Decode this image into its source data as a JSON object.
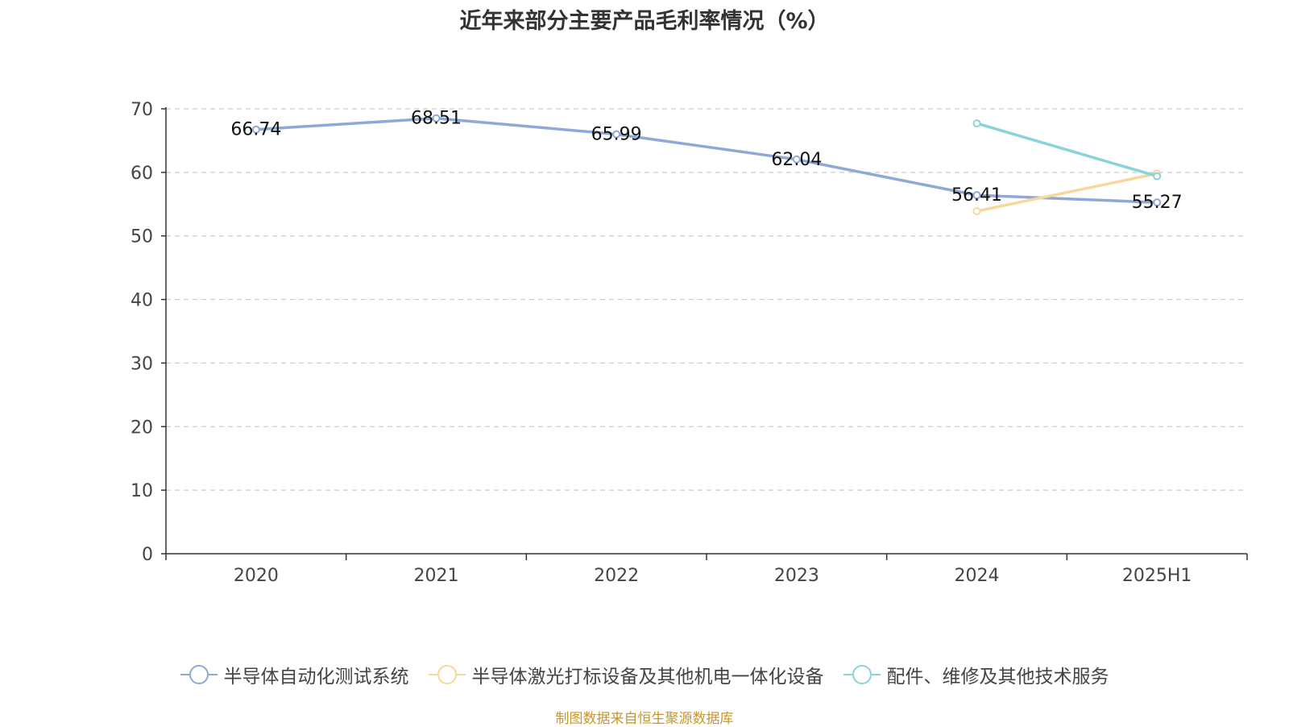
{
  "chart_data": {
    "type": "line",
    "title": "近年来部分主要产品毛利率情况（%）",
    "categories": [
      "2020",
      "2021",
      "2022",
      "2023",
      "2024",
      "2025H1"
    ],
    "ylim": [
      0,
      70
    ],
    "yticks": [
      0,
      10,
      20,
      30,
      40,
      50,
      60,
      70
    ],
    "grid": true,
    "legend_position": "bottom",
    "series": [
      {
        "name": "半导体自动化测试系统",
        "color": "#8fa9d6",
        "values": [
          66.74,
          68.51,
          65.99,
          62.04,
          56.41,
          55.27
        ],
        "labels": [
          "66.74",
          "68.51",
          "65.99",
          "62.04",
          "56.41",
          "55.27"
        ]
      },
      {
        "name": "半导体激光打标设备及其他机电一体化设备",
        "color": "#f7d79a",
        "values": [
          null,
          null,
          null,
          null,
          53.9,
          59.8
        ],
        "labels": []
      },
      {
        "name": "配件、维修及其他技术服务",
        "color": "#88d4d8",
        "values": [
          null,
          null,
          null,
          null,
          67.7,
          59.4
        ],
        "labels": []
      }
    ]
  },
  "source_note": "制图数据来自恒生聚源数据库"
}
